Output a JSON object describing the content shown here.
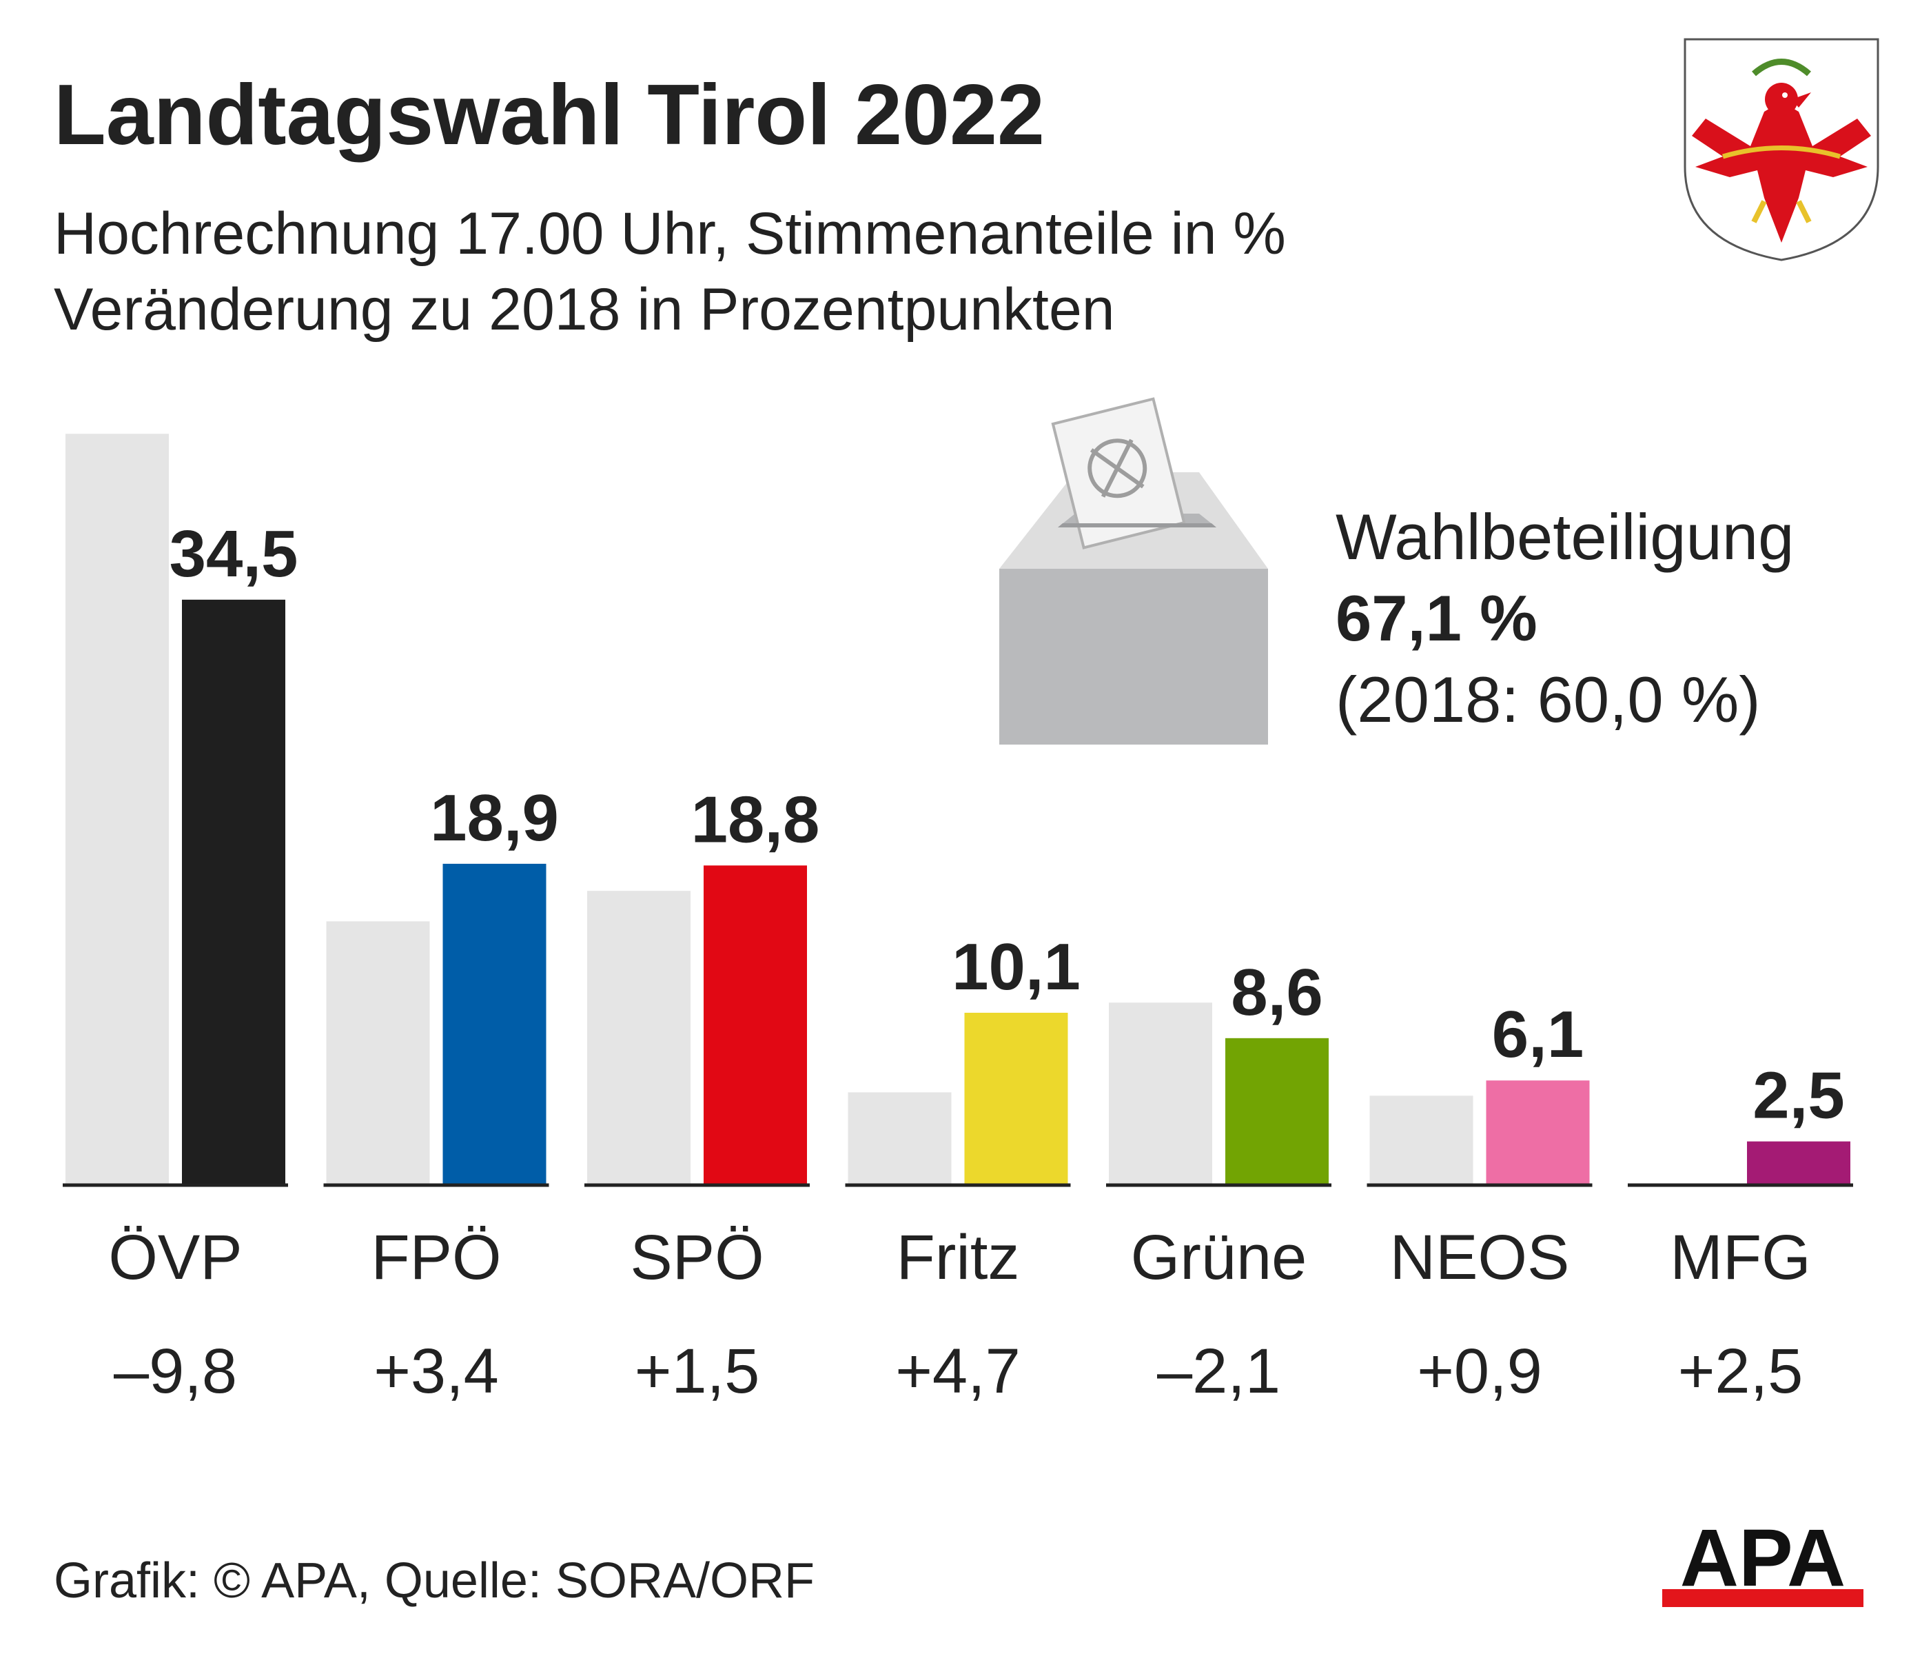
{
  "title": "Landtagswahl Tirol 2022",
  "subtitle1": "Hochrechnung 17.00 Uhr, Stimmenanteile in %",
  "subtitle2": "Veränderung zu 2018 in Prozentpunkten",
  "turnout": {
    "label": "Wahlbeteiligung",
    "value": "67,1 %",
    "previous": "(2018: 60,0 %)"
  },
  "source": "Grafik: © APA, Quelle: SORA/ORF",
  "logo": "APA",
  "coat_of_arms": "tirol-eagle-icon",
  "ballot_box": "ballot-box-icon",
  "chart_data": {
    "type": "bar",
    "categories": [
      "ÖVP",
      "FPÖ",
      "SPÖ",
      "Fritz",
      "Grüne",
      "NEOS",
      "MFG"
    ],
    "series": [
      {
        "values": [
          44.3,
          15.5,
          17.3,
          5.4,
          10.7,
          5.2,
          0.0
        ],
        "color": "#e5e5e5"
      },
      {
        "values": [
          34.5,
          18.9,
          18.8,
          10.1,
          8.6,
          6.1,
          2.5
        ],
        "colors": [
          "#1f1f1f",
          "#005da8",
          "#e10814",
          "#ecd82c",
          "#72a403",
          "#ee6ea5",
          "#a41b74"
        ]
      }
    ],
    "value_labels": [
      "34,5",
      "18,9",
      "18,8",
      "10,1",
      "8,6",
      "6,1",
      "2,5"
    ],
    "changes": [
      "–9,8",
      "+3,4",
      "+1,5",
      "+4,7",
      "–2,1",
      "+0,9",
      "+2,5"
    ],
    "ylim": [
      0,
      45
    ],
    "grid": false,
    "legend": "none"
  }
}
